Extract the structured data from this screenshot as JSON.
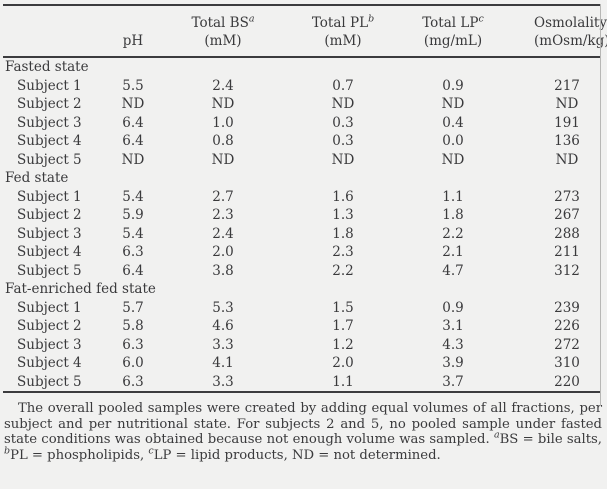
{
  "table": {
    "header": {
      "ph": "pH",
      "cols": [
        {
          "title": "Total BS",
          "sup": "a",
          "unit": "(mM)"
        },
        {
          "title": "Total PL",
          "sup": "b",
          "unit": "(mM)"
        },
        {
          "title": "Total LP",
          "sup": "c",
          "unit": "(mg/mL)"
        },
        {
          "title": "Osmolality",
          "sup": "",
          "unit": "(mOsm/kg)"
        }
      ]
    },
    "sections": [
      {
        "label": "Fasted state",
        "rows": [
          {
            "cells": [
              "Subject 1",
              "5.5",
              "2.4",
              "0.7",
              "0.9",
              "217"
            ]
          },
          {
            "cells": [
              "Subject 2",
              "ND",
              "ND",
              "ND",
              "ND",
              "ND"
            ]
          },
          {
            "cells": [
              "Subject 3",
              "6.4",
              "1.0",
              "0.3",
              "0.4",
              "191"
            ]
          },
          {
            "cells": [
              "Subject 4",
              "6.4",
              "0.8",
              "0.3",
              "0.0",
              "136"
            ]
          },
          {
            "cells": [
              "Subject 5",
              "ND",
              "ND",
              "ND",
              "ND",
              "ND"
            ]
          }
        ]
      },
      {
        "label": "Fed state",
        "rows": [
          {
            "cells": [
              "Subject 1",
              "5.4",
              "2.7",
              "1.6",
              "1.1",
              "273"
            ]
          },
          {
            "cells": [
              "Subject 2",
              "5.9",
              "2.3",
              "1.3",
              "1.8",
              "267"
            ]
          },
          {
            "cells": [
              "Subject 3",
              "5.4",
              "2.4",
              "1.8",
              "2.2",
              "288"
            ]
          },
          {
            "cells": [
              "Subject 4",
              "6.3",
              "2.0",
              "2.3",
              "2.1",
              "211"
            ]
          },
          {
            "cells": [
              "Subject 5",
              "6.4",
              "3.8",
              "2.2",
              "4.7",
              "312"
            ]
          }
        ]
      },
      {
        "label": "Fat-enriched fed state",
        "rows": [
          {
            "cells": [
              "Subject 1",
              "5.7",
              "5.3",
              "1.5",
              "0.9",
              "239"
            ]
          },
          {
            "cells": [
              "Subject 2",
              "5.8",
              "4.6",
              "1.7",
              "3.1",
              "226"
            ]
          },
          {
            "cells": [
              "Subject 3",
              "6.3",
              "3.3",
              "1.2",
              "4.3",
              "272"
            ]
          },
          {
            "cells": [
              "Subject 4",
              "6.0",
              "4.1",
              "2.0",
              "3.9",
              "310"
            ]
          },
          {
            "cells": [
              "Subject 5",
              "6.3",
              "3.3",
              "1.1",
              "3.7",
              "220"
            ]
          }
        ]
      }
    ]
  },
  "footnote": {
    "body": "The overall pooled samples were created by adding equal volumes of all fractions, per subject and per nutritional state. For subjects 2 and 5, no pooled sample under fasted state conditions was obtained because not enough volume was sampled. ",
    "sup_a": "a",
    "seg_a": "BS = bile salts, ",
    "sup_b": "b",
    "seg_b": "PL = phospholipids, ",
    "sup_c": "c",
    "seg_c": "LP = lipid products, ND = not determined."
  }
}
